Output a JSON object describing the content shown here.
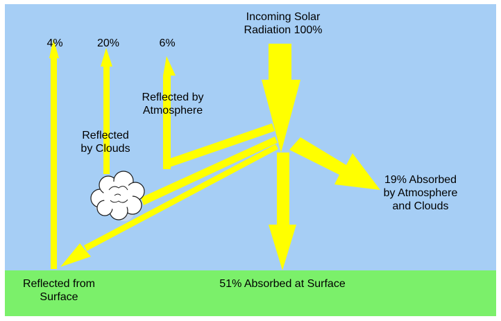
{
  "colors": {
    "sky": "#a6cef5",
    "ground": "#7bf06a",
    "arrow": "#ffff00",
    "text": "#000000",
    "cloud_fill": "#ffffff",
    "cloud_shade": "#c8d8ec"
  },
  "labels": {
    "incoming": [
      "Incoming Solar",
      "Radiation 100%"
    ],
    "pct_surface": "4%",
    "pct_clouds": "20%",
    "pct_atmosphere": "6%",
    "reflected_atmosphere": [
      "Reflected by",
      "Atmosphere"
    ],
    "reflected_clouds": [
      "Reflected",
      "by Clouds"
    ],
    "absorbed_atmosphere": [
      "19% Absorbed",
      "by Atmosphere",
      "and Clouds"
    ],
    "absorbed_surface": "51% Absorbed at Surface",
    "reflected_surface": [
      "Reflected from",
      "Surface"
    ]
  }
}
